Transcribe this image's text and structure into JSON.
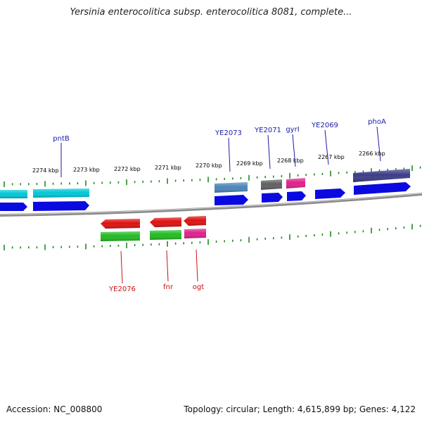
{
  "title": "Yersinia enterocolitica subsp. enterocolitica 8081, complete...",
  "footer": {
    "accession": "Accession: NC_008800",
    "summary": "Topology: circular; Length: 4,615,899 bp; Genes: 4,122"
  },
  "colors": {
    "backbone": "#7a7a7a",
    "tick": "#1e8a1e",
    "forward_label": "#1a1aa8",
    "reverse_label": "#cc1111"
  },
  "kbp_labels": [
    {
      "text": "2274 kbp",
      "kbp": 2274
    },
    {
      "text": "2273 kbp",
      "kbp": 2273
    },
    {
      "text": "2272 kbp",
      "kbp": 2272
    },
    {
      "text": "2271 kbp",
      "kbp": 2271
    },
    {
      "text": "2270 kbp",
      "kbp": 2270
    },
    {
      "text": "2269 kbp",
      "kbp": 2269
    },
    {
      "text": "2268 kbp",
      "kbp": 2268
    },
    {
      "text": "2267 kbp",
      "kbp": 2267
    },
    {
      "text": "2266 kbp",
      "kbp": 2266
    }
  ],
  "forward_labels": [
    {
      "text": "pntB"
    },
    {
      "text": "YE2073"
    },
    {
      "text": "YE2071"
    },
    {
      "text": "gyrI"
    },
    {
      "text": "YE2069"
    },
    {
      "text": "phoA"
    }
  ],
  "reverse_labels": [
    {
      "text": "YE2076"
    },
    {
      "text": "fnr"
    },
    {
      "text": "ogt"
    }
  ],
  "features": {
    "forward_outer_colors": [
      "#00c8d8",
      "#00c8d8",
      "#4a86b8",
      "#606060",
      "#e0208c",
      "#3c3c88"
    ],
    "forward_inner_color": "#0a0ae0",
    "reverse_outer_color": "#e01010",
    "reverse_inner_colors": [
      "#22bb22",
      "#22bb22",
      "#e0208c"
    ]
  }
}
